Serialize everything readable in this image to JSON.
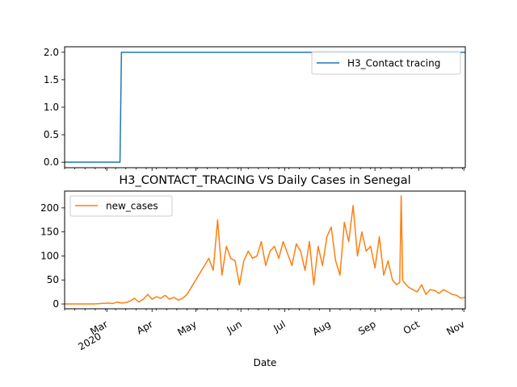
{
  "chart_data": [
    {
      "type": "line",
      "title": "",
      "xlabel": "",
      "ylabel": "",
      "ylim": [
        -0.1,
        2.1
      ],
      "yticks": [
        "0.0",
        "0.5",
        "1.0",
        "1.5",
        "2.0"
      ],
      "legend_position": "top-right",
      "grid": false,
      "series": [
        {
          "name": "H3_Contact tracing",
          "color": "#1f77b4",
          "x": [
            "2020-02-01",
            "2020-03-10",
            "2020-03-11",
            "2020-11-02"
          ],
          "y": [
            0,
            0,
            2,
            2
          ]
        }
      ]
    },
    {
      "type": "line",
      "title": "H3_CONTACT_TRACING VS Daily Cases in Senegal",
      "xlabel": "Date",
      "ylabel": "",
      "ylim": [
        -10,
        235
      ],
      "yticks": [
        "0",
        "50",
        "100",
        "150",
        "200"
      ],
      "legend_position": "top-left",
      "grid": false,
      "xticks": [
        {
          "date": "2020-03-01",
          "label": "Mar",
          "sub": "2020"
        },
        {
          "date": "2020-04-01",
          "label": "Apr"
        },
        {
          "date": "2020-05-01",
          "label": "May"
        },
        {
          "date": "2020-06-01",
          "label": "Jun"
        },
        {
          "date": "2020-07-01",
          "label": "Jul"
        },
        {
          "date": "2020-08-01",
          "label": "Aug"
        },
        {
          "date": "2020-09-01",
          "label": "Sep"
        },
        {
          "date": "2020-10-01",
          "label": "Oct"
        },
        {
          "date": "2020-11-01",
          "label": "Nov"
        }
      ],
      "series": [
        {
          "name": "new_cases",
          "color": "#ff7f0e",
          "x": [
            "2020-02-01",
            "2020-02-06",
            "2020-02-11",
            "2020-02-16",
            "2020-02-21",
            "2020-02-26",
            "2020-03-02",
            "2020-03-05",
            "2020-03-08",
            "2020-03-11",
            "2020-03-14",
            "2020-03-17",
            "2020-03-20",
            "2020-03-23",
            "2020-03-26",
            "2020-03-29",
            "2020-04-01",
            "2020-04-04",
            "2020-04-07",
            "2020-04-10",
            "2020-04-13",
            "2020-04-16",
            "2020-04-19",
            "2020-04-22",
            "2020-04-25",
            "2020-04-28",
            "2020-05-01",
            "2020-05-04",
            "2020-05-07",
            "2020-05-10",
            "2020-05-13",
            "2020-05-16",
            "2020-05-19",
            "2020-05-22",
            "2020-05-25",
            "2020-05-28",
            "2020-05-31",
            "2020-06-03",
            "2020-06-06",
            "2020-06-09",
            "2020-06-12",
            "2020-06-15",
            "2020-06-18",
            "2020-06-21",
            "2020-06-24",
            "2020-06-27",
            "2020-06-30",
            "2020-07-03",
            "2020-07-06",
            "2020-07-09",
            "2020-07-12",
            "2020-07-15",
            "2020-07-18",
            "2020-07-21",
            "2020-07-24",
            "2020-07-27",
            "2020-07-30",
            "2020-08-02",
            "2020-08-05",
            "2020-08-08",
            "2020-08-11",
            "2020-08-14",
            "2020-08-17",
            "2020-08-20",
            "2020-08-23",
            "2020-08-26",
            "2020-08-29",
            "2020-09-01",
            "2020-09-04",
            "2020-09-07",
            "2020-09-10",
            "2020-09-13",
            "2020-09-16",
            "2020-09-18",
            "2020-09-19",
            "2020-09-20",
            "2020-09-21",
            "2020-09-24",
            "2020-09-27",
            "2020-09-30",
            "2020-10-03",
            "2020-10-06",
            "2020-10-09",
            "2020-10-12",
            "2020-10-15",
            "2020-10-18",
            "2020-10-21",
            "2020-10-24",
            "2020-10-27",
            "2020-10-30",
            "2020-11-02"
          ],
          "y": [
            0,
            0,
            0,
            0,
            0,
            1,
            2,
            1,
            4,
            2,
            3,
            6,
            12,
            4,
            10,
            20,
            10,
            15,
            12,
            18,
            10,
            14,
            8,
            12,
            20,
            35,
            50,
            65,
            80,
            95,
            70,
            175,
            60,
            120,
            95,
            90,
            40,
            90,
            110,
            95,
            100,
            130,
            80,
            110,
            120,
            95,
            130,
            105,
            80,
            125,
            110,
            70,
            130,
            40,
            120,
            80,
            140,
            160,
            90,
            60,
            170,
            130,
            205,
            100,
            150,
            110,
            120,
            75,
            140,
            60,
            90,
            50,
            40,
            45,
            225,
            50,
            45,
            35,
            30,
            25,
            40,
            20,
            30,
            28,
            22,
            30,
            25,
            20,
            18,
            12,
            14
          ]
        }
      ]
    }
  ]
}
